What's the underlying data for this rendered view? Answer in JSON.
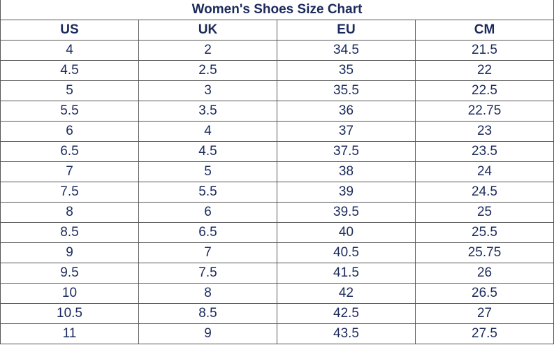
{
  "title": "Women's Shoes Size Chart",
  "table": {
    "header": [
      "US",
      "UK",
      "EU",
      "CM"
    ],
    "rows": [
      [
        "4",
        "2",
        "34.5",
        "21.5"
      ],
      [
        "4.5",
        "2.5",
        "35",
        "22"
      ],
      [
        "5",
        "3",
        "35.5",
        "22.5"
      ],
      [
        "5.5",
        "3.5",
        "36",
        "22.75"
      ],
      [
        "6",
        "4",
        "37",
        "23"
      ],
      [
        "6.5",
        "4.5",
        "37.5",
        "23.5"
      ],
      [
        "7",
        "5",
        "38",
        "24"
      ],
      [
        "7.5",
        "5.5",
        "39",
        "24.5"
      ],
      [
        "8",
        "6",
        "39.5",
        "25"
      ],
      [
        "8.5",
        "6.5",
        "40",
        "25.5"
      ],
      [
        "9",
        "7",
        "40.5",
        "25.75"
      ],
      [
        "9.5",
        "7.5",
        "41.5",
        "26"
      ],
      [
        "10",
        "8",
        "42",
        "26.5"
      ],
      [
        "10.5",
        "8.5",
        "42.5",
        "27"
      ],
      [
        "11",
        "9",
        "43.5",
        "27.5"
      ]
    ]
  }
}
